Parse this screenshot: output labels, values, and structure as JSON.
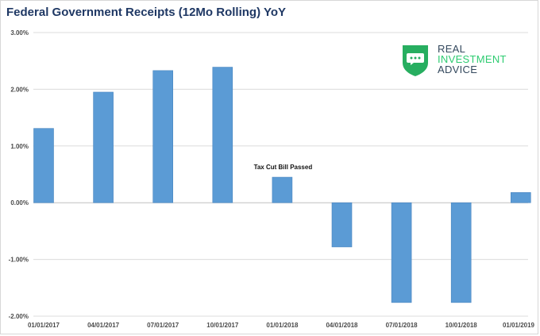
{
  "title": "Federal Government Receipts (12Mo Rolling) YoY",
  "logo": {
    "line1": "REAL",
    "line2": "INVESTMENT",
    "line3": "ADVICE",
    "icon": "speech-bubble-shield-icon",
    "colors": {
      "shield": "#27ae60",
      "dark_text": "#34495e",
      "accent_text": "#2ecc71"
    }
  },
  "colors": {
    "bar": "#5b9bd5",
    "bar_edge": "#4a86c0",
    "title": "#1f3864"
  },
  "chart_data": {
    "type": "bar",
    "title": "Federal Government Receipts (12Mo Rolling) YoY",
    "xlabel": "",
    "ylabel": "",
    "categories": [
      "01/01/2017",
      "04/01/2017",
      "07/01/2017",
      "10/01/2017",
      "01/01/2018",
      "04/01/2018",
      "07/01/2018",
      "10/01/2018",
      "01/01/2019"
    ],
    "values": [
      1.31,
      1.95,
      2.33,
      2.39,
      0.45,
      -0.78,
      -1.76,
      -1.76,
      0.18
    ],
    "unit": "%",
    "ylim": [
      -2.0,
      3.0
    ],
    "yticks": [
      "3.00%",
      "2.00%",
      "1.00%",
      "0.00%",
      "-1.00%",
      "-2.00%"
    ],
    "ytick_values": [
      3,
      2,
      1,
      0,
      -1,
      -2
    ],
    "grid": true,
    "annotations": [
      {
        "text": "Tax Cut Bill Passed",
        "category": "01/01/2018"
      }
    ]
  }
}
